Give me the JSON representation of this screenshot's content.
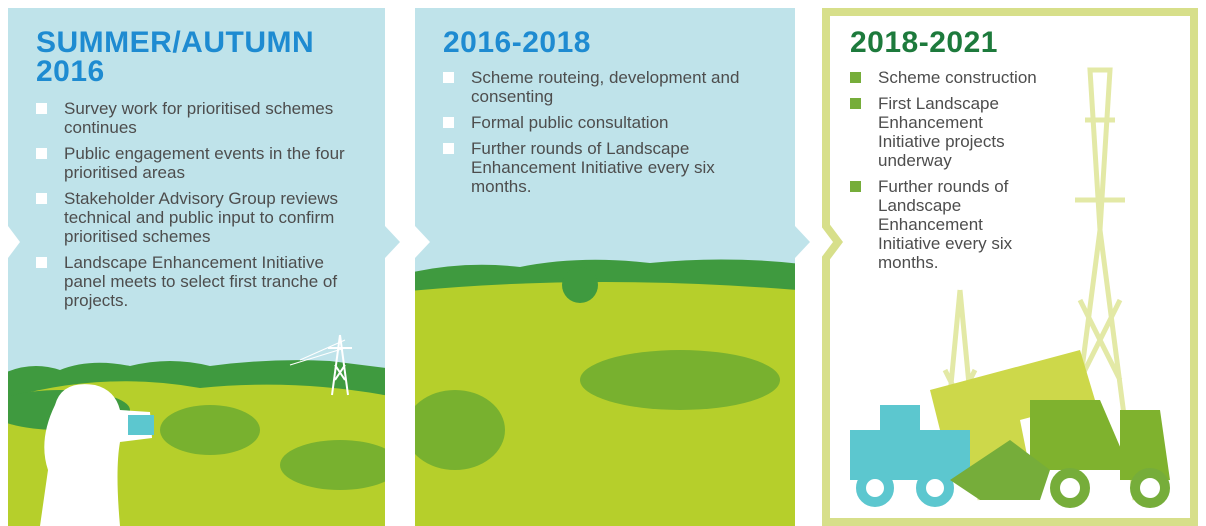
{
  "panels": [
    {
      "title": "SUMMER/AUTUMN 2016",
      "items": [
        "Survey work for prioritised schemes continues",
        "Public engagement events in the four prioritised areas",
        "Stakeholder Advisory Group reviews technical and public input to confirm prioritised schemes",
        "Landscape Enhancement Initiative panel meets to select first tranche of projects."
      ]
    },
    {
      "title": "2016-2018",
      "items": [
        "Scheme routeing, development and consenting",
        "Formal public consultation",
        "Further rounds of Landscape Enhancement Initiative every six months."
      ]
    },
    {
      "title": "2018-2021",
      "items": [
        "Scheme construction",
        "First Landscape Enhancement Initiative projects underway",
        "Further rounds of Landscape Enhancement Initiative every six months."
      ]
    }
  ]
}
